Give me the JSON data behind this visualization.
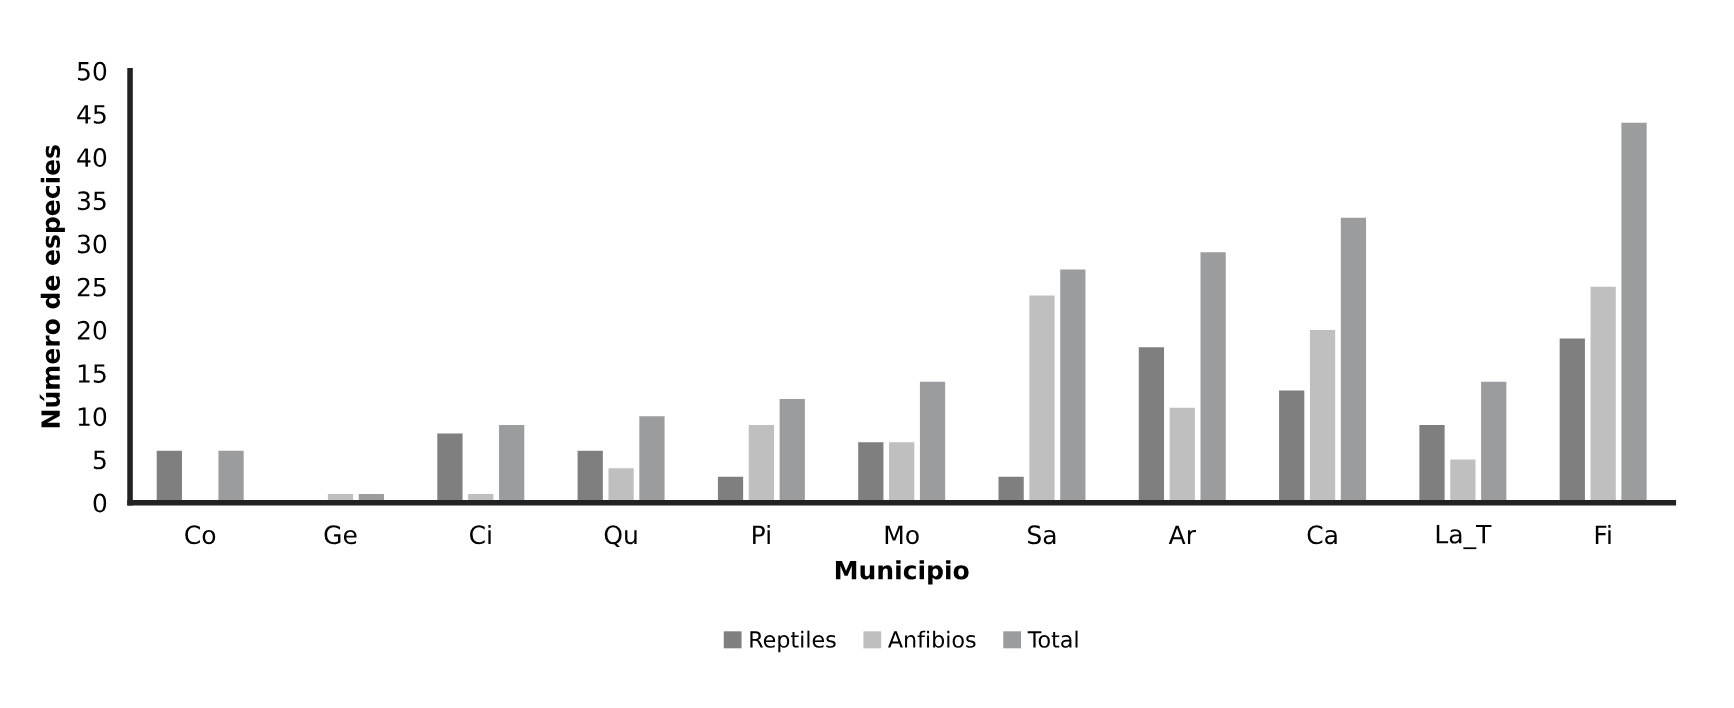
{
  "chart_data": {
    "type": "bar",
    "xlabel": "Municipio",
    "ylabel": "Número de especies",
    "categories": [
      "Co",
      "Ge",
      "Ci",
      "Qu",
      "Pi",
      "Mo",
      "Sa",
      "Ar",
      "Ca",
      "La_T",
      "Fi"
    ],
    "series": [
      {
        "name": "Reptiles",
        "color": "#7f7f7f",
        "values": [
          6,
          0,
          8,
          6,
          3,
          7,
          3,
          18,
          13,
          9,
          19
        ]
      },
      {
        "name": "Anfibios",
        "color": "#bfbfbf",
        "values": [
          0,
          1,
          1,
          4,
          9,
          7,
          24,
          11,
          20,
          5,
          25
        ]
      },
      {
        "name": "Total",
        "color": "#9a9c9e",
        "values": [
          6,
          1,
          9,
          10,
          12,
          14,
          27,
          29,
          33,
          14,
          44
        ]
      }
    ],
    "ylim": [
      0,
      50
    ],
    "yticks": [
      0,
      5,
      10,
      15,
      20,
      25,
      30,
      35,
      40,
      45,
      50
    ],
    "grid": false,
    "legend": "bottom"
  }
}
